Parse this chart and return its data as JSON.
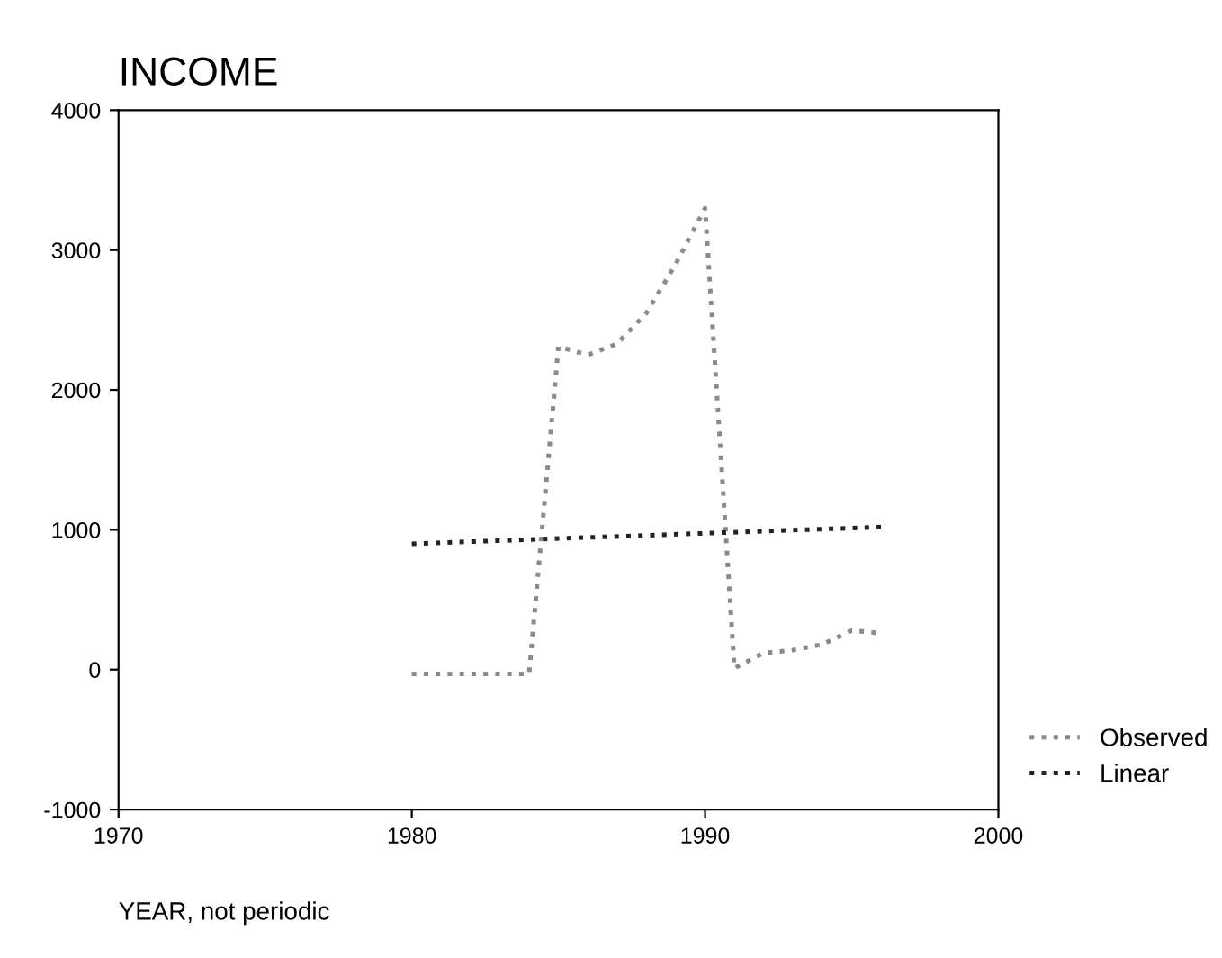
{
  "chart_data": {
    "type": "line",
    "title": "INCOME",
    "xlabel": "YEAR, not periodic",
    "xlim": [
      1970,
      2000
    ],
    "xticks": [
      1970,
      1980,
      1990,
      2000
    ],
    "ylim": [
      -1000,
      4000
    ],
    "yticks": [
      -1000,
      0,
      1000,
      2000,
      3000,
      4000
    ],
    "grid": false,
    "legend": "bottom right",
    "line_style": "dotted",
    "series": [
      {
        "name": "Observed",
        "color": "#8a8a8a",
        "x": [
          1980,
          1981,
          1982,
          1983,
          1984,
          1985,
          1986,
          1987,
          1988,
          1989,
          1990,
          1991,
          1992,
          1993,
          1994,
          1995,
          1996
        ],
        "values": [
          -30,
          -30,
          -30,
          -30,
          -30,
          2310,
          2250,
          2330,
          2550,
          2900,
          3300,
          10,
          120,
          140,
          180,
          280,
          260
        ]
      },
      {
        "name": "Linear",
        "color": "#222222",
        "x": [
          1980,
          1996
        ],
        "values": [
          900,
          1020
        ]
      }
    ]
  }
}
